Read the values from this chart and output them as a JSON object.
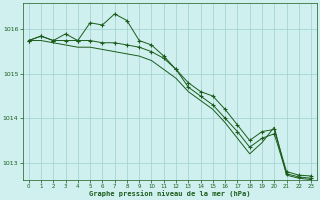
{
  "background_color": "#d0f0f0",
  "grid_color": "#a0d0d0",
  "line_color": "#1a5c1a",
  "series1": [
    1015.75,
    1015.85,
    1015.75,
    1015.9,
    1015.75,
    1016.15,
    1016.1,
    1016.35,
    1016.2,
    1015.75,
    1015.65,
    1015.4,
    1015.1,
    1014.8,
    1014.6,
    1014.5,
    1014.2,
    1013.85,
    1013.5,
    1013.7,
    1013.75,
    1012.8,
    1012.72,
    1012.7
  ],
  "series2": [
    1015.75,
    1015.85,
    1015.75,
    1015.75,
    1015.75,
    1015.75,
    1015.7,
    1015.7,
    1015.65,
    1015.6,
    1015.5,
    1015.35,
    1015.1,
    1014.7,
    1014.5,
    1014.3,
    1014.0,
    1013.7,
    1013.35,
    1013.55,
    1013.65,
    1012.75,
    1012.68,
    1012.65
  ],
  "series3": [
    1015.75,
    1015.75,
    1015.7,
    1015.65,
    1015.6,
    1015.6,
    1015.55,
    1015.5,
    1015.45,
    1015.4,
    1015.3,
    1015.1,
    1014.9,
    1014.6,
    1014.4,
    1014.2,
    1013.9,
    1013.55,
    1013.2,
    1013.45,
    1013.8,
    1012.72,
    1012.65,
    1012.62
  ],
  "ylim": [
    1012.6,
    1016.6
  ],
  "yticks": [
    1013,
    1014,
    1015,
    1016
  ],
  "xticks": [
    0,
    1,
    2,
    3,
    4,
    5,
    6,
    7,
    8,
    9,
    10,
    11,
    12,
    13,
    14,
    15,
    16,
    17,
    18,
    19,
    20,
    21,
    22,
    23
  ],
  "xlabel": "Graphe pression niveau de la mer (hPa)"
}
